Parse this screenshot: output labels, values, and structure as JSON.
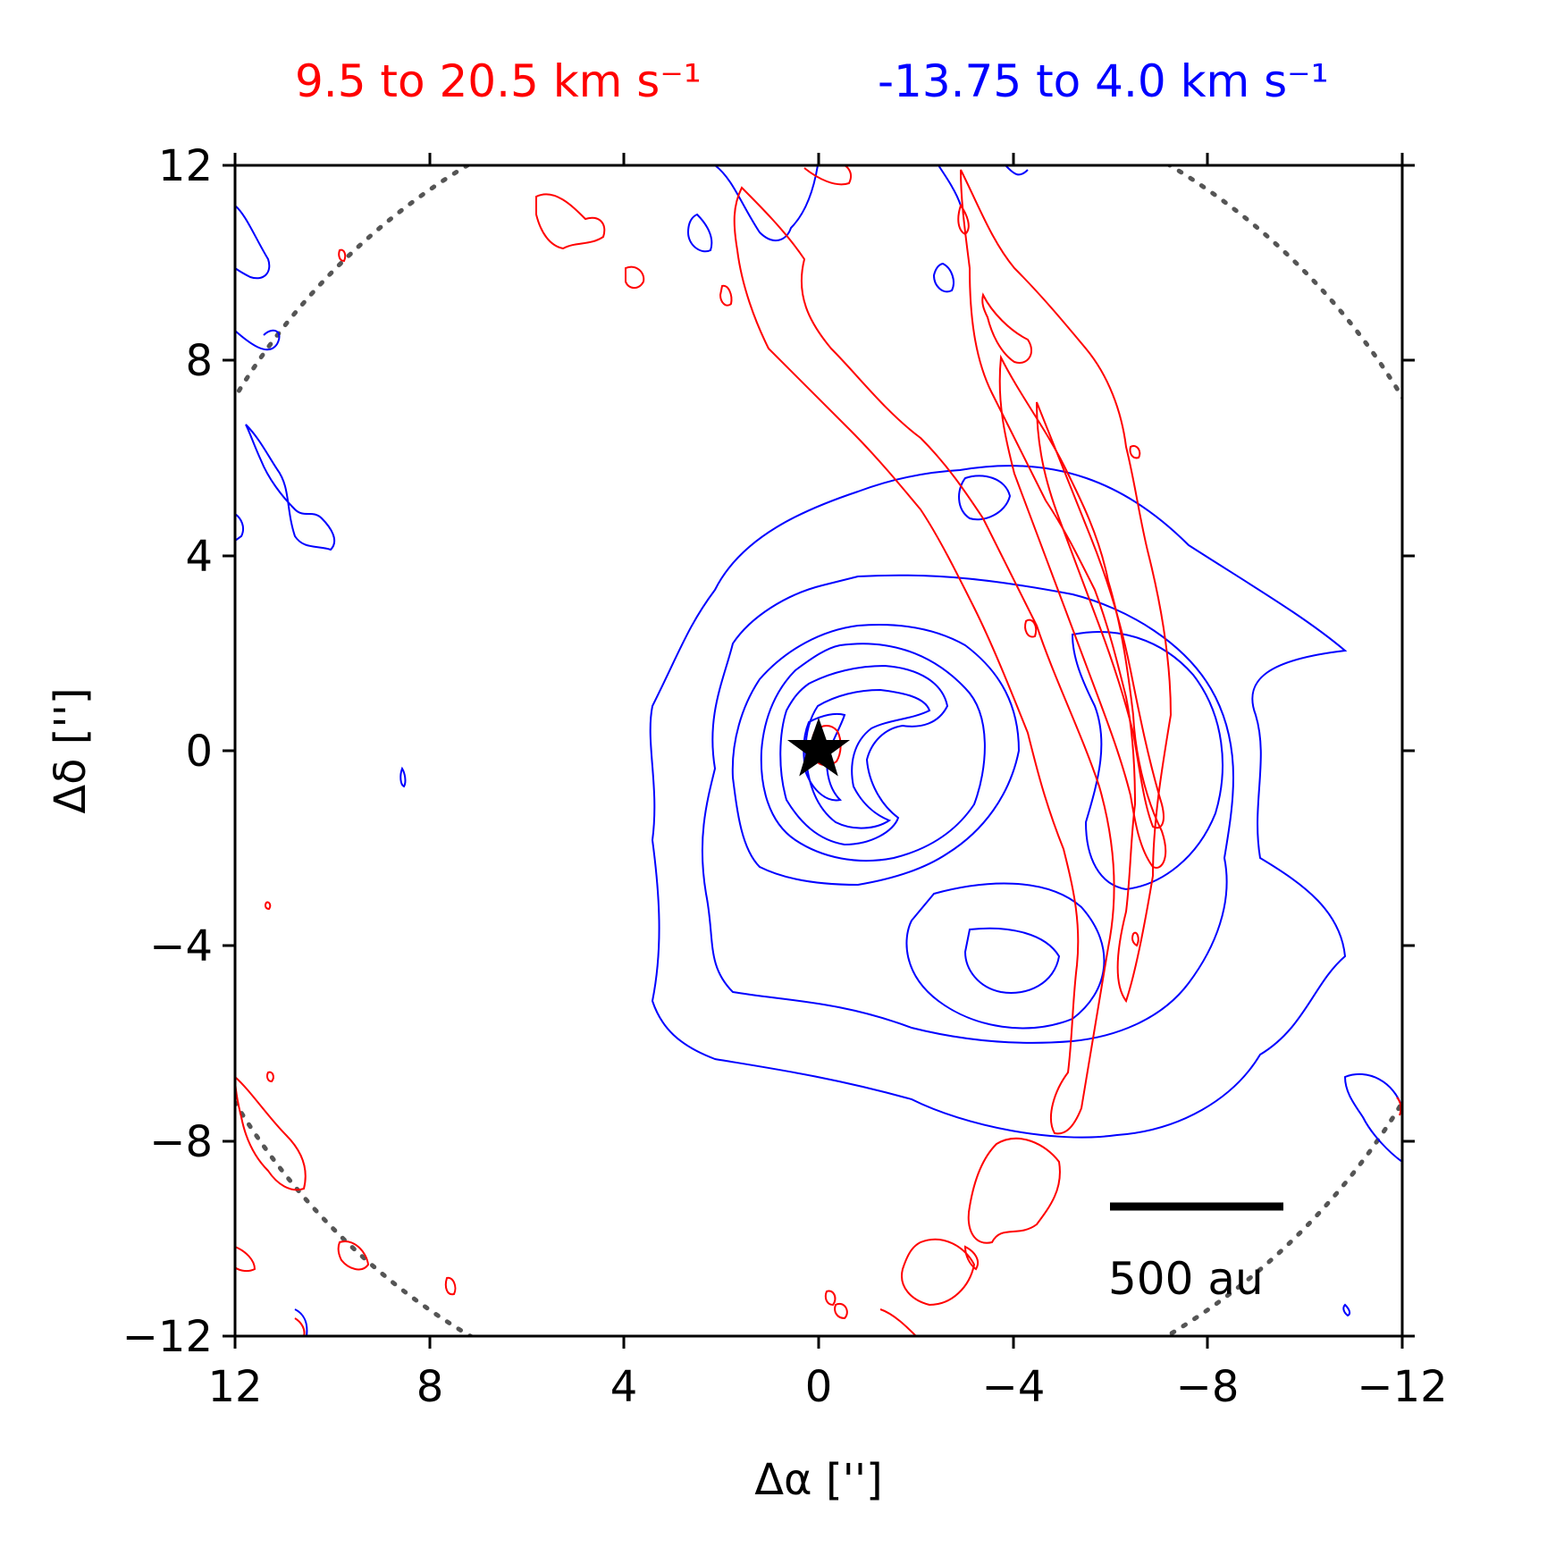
{
  "chart_data": {
    "type": "contour",
    "xlabel": "Δα ['']",
    "ylabel": "Δδ ['']",
    "xlim": [
      12,
      -12
    ],
    "ylim": [
      -12,
      12
    ],
    "xticks": [
      12,
      8,
      4,
      0,
      -4,
      -8,
      -12
    ],
    "yticks": [
      -12,
      -8,
      -4,
      0,
      4,
      8,
      12
    ],
    "xtick_labels": [
      "12",
      "8",
      "4",
      "0",
      "−4",
      "−8",
      "−12"
    ],
    "ytick_labels": [
      "−12",
      "−8",
      "−4",
      "0",
      "4",
      "8",
      "12"
    ],
    "grid": false,
    "series": [
      {
        "name": "9.5 to 20.5 km s⁻¹",
        "color": "#ff0000"
      },
      {
        "name": "-13.75 to 4.0 km s⁻¹",
        "color": "#0000ff"
      }
    ],
    "star": {
      "x": 0,
      "y": 0,
      "color": "#000000"
    },
    "fov_circle": {
      "center": [
        0,
        0
      ],
      "radius": 14.0,
      "style": "dotted",
      "color": "#555555"
    },
    "scalebar": {
      "label": "500 au",
      "length_arcsec": 3.6,
      "x_start": -6.0,
      "y": -9.5
    }
  }
}
